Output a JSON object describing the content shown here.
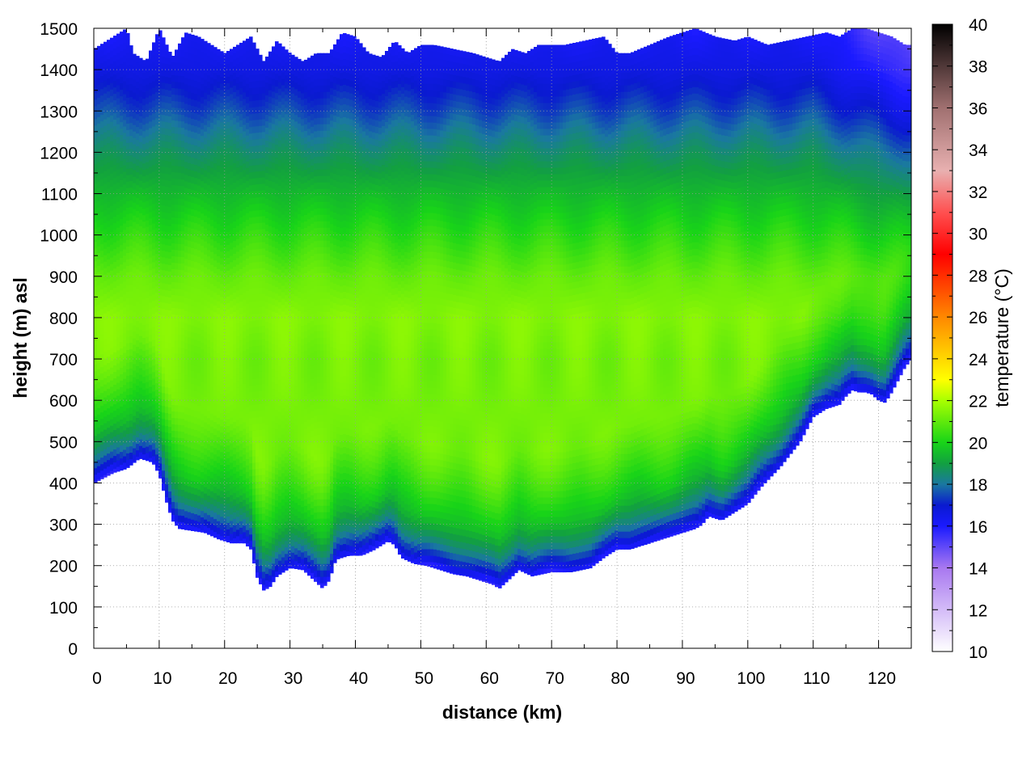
{
  "chart_data": {
    "type": "heatmap",
    "title": "",
    "xlabel": "distance (km)",
    "ylabel": "height (m) asl",
    "colorbar_label": "temperature (°C)",
    "xlim": [
      0,
      125
    ],
    "ylim": [
      0,
      1500
    ],
    "clim": [
      10,
      40
    ],
    "xticks": [
      0,
      10,
      20,
      30,
      40,
      50,
      60,
      70,
      80,
      90,
      100,
      110,
      120
    ],
    "yticks": [
      0,
      100,
      200,
      300,
      400,
      500,
      600,
      700,
      800,
      900,
      1000,
      1100,
      1200,
      1300,
      1400,
      1500
    ],
    "cticks": [
      10,
      12,
      14,
      16,
      18,
      20,
      22,
      24,
      26,
      28,
      30,
      32,
      34,
      36,
      38,
      40
    ],
    "grid": true,
    "colormap": [
      {
        "t": 10,
        "color": "#ffffff"
      },
      {
        "t": 14,
        "color": "#a878f0"
      },
      {
        "t": 16,
        "color": "#1a1aff"
      },
      {
        "t": 17,
        "color": "#0a1ad0"
      },
      {
        "t": 18,
        "color": "#1a78a0"
      },
      {
        "t": 19,
        "color": "#12a040"
      },
      {
        "t": 20,
        "color": "#18d418"
      },
      {
        "t": 22,
        "color": "#a8ff00"
      },
      {
        "t": 23,
        "color": "#ffff00"
      },
      {
        "t": 26,
        "color": "#ff8800"
      },
      {
        "t": 29,
        "color": "#ff0000"
      },
      {
        "t": 31,
        "color": "#ff5050"
      },
      {
        "t": 33,
        "color": "#e8b0b0"
      },
      {
        "t": 36,
        "color": "#a07070"
      },
      {
        "t": 40,
        "color": "#000000"
      }
    ],
    "terrain": {
      "x": [
        0,
        3,
        5,
        7,
        9,
        10,
        11,
        12,
        13,
        15,
        17,
        19,
        21,
        23,
        24,
        25,
        26,
        27,
        28,
        30,
        32,
        34,
        35,
        36,
        37,
        39,
        41,
        43,
        45,
        46,
        47,
        49,
        51,
        53,
        55,
        57,
        59,
        61,
        62,
        63,
        65,
        67,
        70,
        73,
        76,
        78,
        80,
        82,
        85,
        88,
        90,
        92,
        93,
        94,
        96,
        98,
        100,
        102,
        105,
        108,
        110,
        112,
        114,
        115,
        116,
        117,
        118,
        119,
        120,
        121,
        122,
        123,
        124,
        125
      ],
      "y": [
        400,
        425,
        435,
        460,
        450,
        420,
        360,
        310,
        290,
        285,
        280,
        265,
        255,
        255,
        240,
        170,
        140,
        150,
        175,
        195,
        190,
        160,
        145,
        165,
        215,
        225,
        225,
        240,
        260,
        250,
        220,
        205,
        200,
        190,
        180,
        175,
        165,
        155,
        145,
        160,
        190,
        175,
        185,
        185,
        195,
        220,
        240,
        240,
        255,
        270,
        280,
        290,
        300,
        320,
        310,
        330,
        350,
        390,
        440,
        500,
        560,
        580,
        590,
        610,
        625,
        620,
        620,
        615,
        600,
        595,
        620,
        650,
        680,
        700
      ]
    },
    "top_boundary": {
      "x": [
        0,
        2,
        4,
        5,
        6,
        8,
        10,
        12,
        14,
        16,
        18,
        20,
        22,
        24,
        26,
        28,
        30,
        32,
        34,
        36,
        38,
        40,
        42,
        44,
        46,
        48,
        50,
        52,
        55,
        58,
        60,
        62,
        64,
        66,
        68,
        70,
        72,
        75,
        78,
        80,
        82,
        85,
        88,
        90,
        92,
        95,
        98,
        100,
        103,
        106,
        109,
        112,
        114,
        116,
        118,
        120,
        122,
        124,
        125
      ],
      "y": [
        1450,
        1470,
        1490,
        1500,
        1440,
        1420,
        1500,
        1430,
        1490,
        1480,
        1460,
        1440,
        1460,
        1480,
        1420,
        1470,
        1440,
        1420,
        1440,
        1440,
        1490,
        1480,
        1440,
        1430,
        1470,
        1440,
        1460,
        1460,
        1450,
        1440,
        1430,
        1420,
        1450,
        1440,
        1460,
        1460,
        1460,
        1470,
        1480,
        1440,
        1440,
        1460,
        1480,
        1490,
        1500,
        1480,
        1470,
        1480,
        1460,
        1470,
        1480,
        1490,
        1480,
        1500,
        1500,
        1490,
        1480,
        1460,
        1460
      ]
    },
    "temperature_bands": [
      {
        "height_above_ground": 0,
        "temp": 15.8
      },
      {
        "height_above_ground": 25,
        "temp": 17.0
      },
      {
        "height_above_ground": 60,
        "temp": 18.2
      },
      {
        "height_above_ground": 120,
        "temp": 19.3
      },
      {
        "height_above_ground": 220,
        "temp": 20.0
      },
      {
        "height_above_ground": 300,
        "temp": 20.6
      },
      {
        "abs_height": 700,
        "temp": 21.3
      },
      {
        "abs_height": 800,
        "temp": 21.5
      },
      {
        "abs_height": 900,
        "temp": 21.1
      },
      {
        "abs_height": 1000,
        "temp": 20.3
      },
      {
        "abs_height": 1100,
        "temp": 19.5
      },
      {
        "abs_height": 1200,
        "temp": 18.6
      },
      {
        "abs_height": 1300,
        "temp": 17.5
      },
      {
        "abs_height": 1400,
        "temp": 16.6
      },
      {
        "abs_height": 1500,
        "temp": 16.1
      }
    ]
  }
}
